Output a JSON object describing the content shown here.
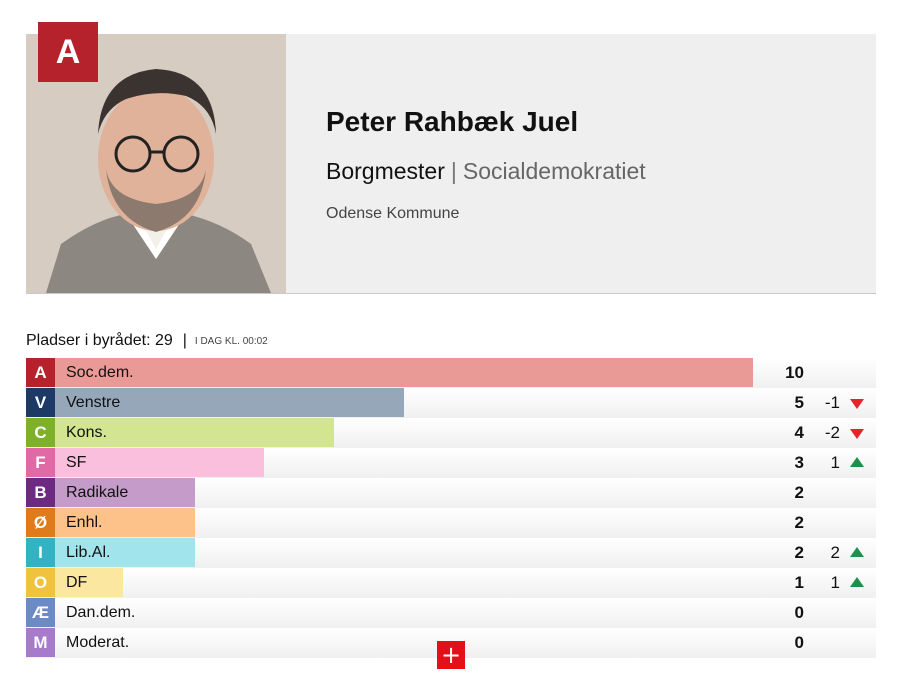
{
  "candidate": {
    "party_letter": "A",
    "name": "Peter Rahbæk Juel",
    "role": "Borgmester",
    "party": "Socialdemokratiet",
    "municipality": "Odense Kommune"
  },
  "seats": {
    "title": "Pladser i byrådet: 29",
    "time": "I DAG KL. 00:02",
    "max_seats": 13,
    "rows": [
      {
        "letter": "A",
        "name": "Soc.dem.",
        "seats": "10",
        "value": 10,
        "change": "",
        "dir": "",
        "letter_color": "#b5222c",
        "bar_color": "#ea9a96"
      },
      {
        "letter": "V",
        "name": "Venstre",
        "seats": "5",
        "value": 5,
        "change": "-1",
        "dir": "down",
        "letter_color": "#1d3a66",
        "bar_color": "#95a7b9"
      },
      {
        "letter": "C",
        "name": "Kons.",
        "seats": "4",
        "value": 4,
        "change": "-2",
        "dir": "down",
        "letter_color": "#7fb02a",
        "bar_color": "#d3e590"
      },
      {
        "letter": "F",
        "name": "SF",
        "seats": "3",
        "value": 3,
        "change": "1",
        "dir": "up",
        "letter_color": "#e06aa6",
        "bar_color": "#f9bfdc"
      },
      {
        "letter": "B",
        "name": "Radikale",
        "seats": "2",
        "value": 2,
        "change": "",
        "dir": "",
        "letter_color": "#6c2a82",
        "bar_color": "#c49bc9"
      },
      {
        "letter": "Ø",
        "name": "Enhl.",
        "seats": "2",
        "value": 2,
        "change": "",
        "dir": "",
        "letter_color": "#e07b1b",
        "bar_color": "#fcc28a"
      },
      {
        "letter": "I",
        "name": "Lib.Al.",
        "seats": "2",
        "value": 2,
        "change": "2",
        "dir": "up",
        "letter_color": "#31b3c3",
        "bar_color": "#a2e4ec"
      },
      {
        "letter": "O",
        "name": "DF",
        "seats": "1",
        "value": 1,
        "change": "1",
        "dir": "up",
        "letter_color": "#f0c23d",
        "bar_color": "#fbe7a0"
      },
      {
        "letter": "Æ",
        "name": "Dan.dem.",
        "seats": "0",
        "value": 0,
        "change": "",
        "dir": "",
        "letter_color": "#6b8ac6",
        "bar_color": "#c6d3ee"
      },
      {
        "letter": "M",
        "name": "Moderat.",
        "seats": "0",
        "value": 0,
        "change": "",
        "dir": "",
        "letter_color": "#a77bcb",
        "bar_color": "#dcc7ee"
      }
    ]
  },
  "plus_label": "+"
}
